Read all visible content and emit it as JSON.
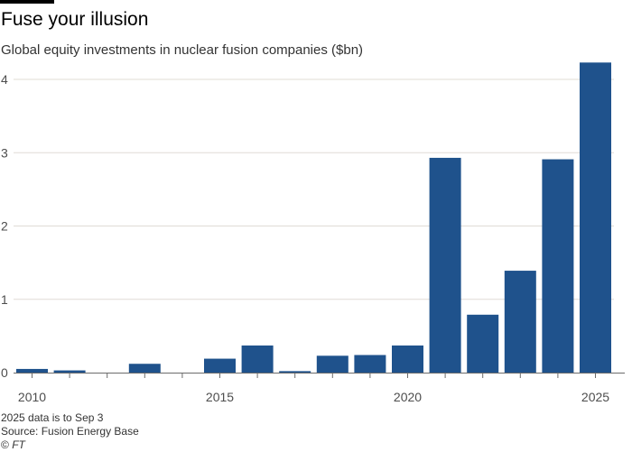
{
  "header": {
    "title": "Fuse your illusion",
    "subtitle": "Global equity investments in nuclear fusion companies ($bn)"
  },
  "footer": {
    "note": "2025 data is to Sep 3",
    "source": "Source: Fusion Energy Base",
    "copyright_symbol": "©",
    "copyright": "FT"
  },
  "colors": {
    "bar": "#1f528c",
    "grid": "#e0dcd6",
    "axis": "#6b6b6b",
    "rule": "#000000"
  },
  "chart_data": {
    "type": "bar",
    "title": "Fuse your illusion",
    "subtitle": "Global equity investments in nuclear fusion companies ($bn)",
    "xlabel": "",
    "ylabel": "",
    "categories": [
      "2010",
      "2011",
      "2012",
      "2013",
      "2014",
      "2015",
      "2016",
      "2017",
      "2018",
      "2019",
      "2020",
      "2021",
      "2022",
      "2023",
      "2024",
      "2025"
    ],
    "values": [
      0.05,
      0.03,
      0,
      0.12,
      0,
      0.19,
      0.37,
      0.02,
      0.23,
      0.24,
      0.37,
      2.93,
      0.79,
      1.39,
      2.91,
      4.23
    ],
    "ylim": [
      0,
      4.3
    ],
    "yticks": [
      0,
      1,
      2,
      3,
      4
    ],
    "ytick_labels": [
      "0",
      "1",
      "2",
      "3",
      "4"
    ],
    "xtick_labels": [
      {
        "year": "2010",
        "label": "2010"
      },
      {
        "year": "2015",
        "label": "2015"
      },
      {
        "year": "2020",
        "label": "2020"
      },
      {
        "year": "2025",
        "label": "2025"
      }
    ],
    "grid": true,
    "legend": "none"
  }
}
